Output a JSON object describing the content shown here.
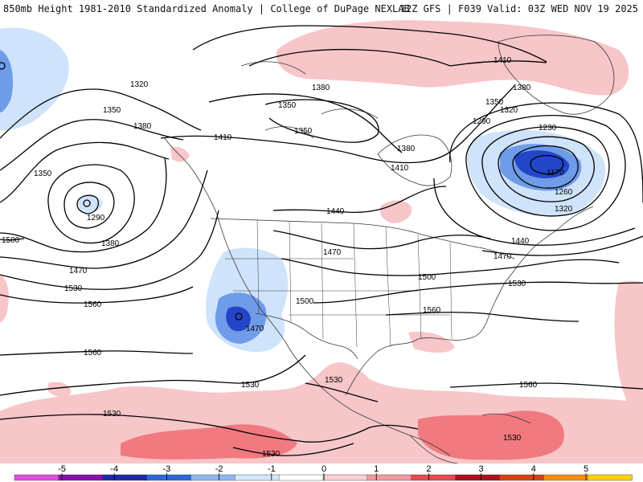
{
  "header": {
    "left": "850mb Height 1981-2010 Standardized Anomaly | College of DuPage NEXLAB",
    "right": "12Z GFS | F039 Valid: 03Z WED NOV 19 2025"
  },
  "map": {
    "colors": {
      "pos_light": "#f7c6c8",
      "pos_mid": "#f07a80",
      "neg_light": "#cfe3fb",
      "neg_mid": "#6f9ce8",
      "neg_deep": "#2346c8",
      "contour": "#000000",
      "coast": "#3a3a3a"
    },
    "contour_labels": {
      "l1320": "1320",
      "l1350a": "1350",
      "l1380a": "1380",
      "l1350b": "1350",
      "l1290": "1290",
      "l1380b": "1380",
      "l1500a": "1500",
      "l1470a": "1470",
      "l1530a": "1530",
      "l1560a": "1560",
      "l1410a": "1410",
      "l1380c": "1380",
      "l1350c": "1350",
      "l1350d": "1350",
      "l1380d": "1380",
      "l1410b": "1410",
      "l1440a": "1440",
      "l1470b": "1470",
      "l1500b": "1500",
      "l1470c": "1470",
      "l1500c": "1500",
      "l1530b": "1530",
      "l1560b": "1560",
      "l1560c": "1560",
      "l1530c": "1530",
      "l1530d": "1530",
      "l1530e": "1530",
      "l1410c": "1410",
      "l1380e": "1380",
      "l1350e": "1350",
      "l1320a": "1320",
      "l1290a": "1290",
      "l1230": "1230",
      "l1170": "1170",
      "l1260": "1260",
      "l1320b": "1320",
      "l1440b": "1440",
      "l1470d": "1470",
      "l1530f": "1530",
      "l1560d": "1560",
      "l1530g": "1530"
    }
  },
  "colorbar": {
    "ticks": [
      "-5",
      "-4",
      "-3",
      "-2",
      "-1",
      "0",
      "1",
      "2",
      "3",
      "4",
      "5"
    ],
    "colors": [
      "#e050e0",
      "#8a10b0",
      "#1c2aa8",
      "#2f66d8",
      "#8fb6ee",
      "#d3e6fb",
      "#ffffff",
      "#fbd0d2",
      "#f39aa0",
      "#e84a50",
      "#b01018",
      "#d84010",
      "#ff8c00",
      "#ffd000"
    ]
  }
}
